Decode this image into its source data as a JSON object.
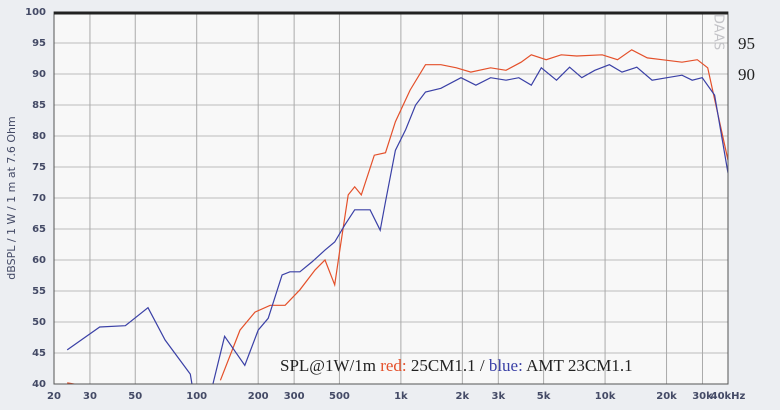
{
  "chart_data": {
    "type": "line",
    "y_label": "dBSPL / 1 W / 1 m at 7.6 Ohm",
    "legend_text": [
      "SPL@1W/1m ",
      "red:",
      " 25CM1.1 / ",
      "blue:",
      " AMT 23CM1.1"
    ],
    "annotations": [
      "95",
      "90"
    ],
    "watermark": "DAAS",
    "x_log": true,
    "grid": true,
    "xlim": [
      20,
      40000
    ],
    "ylim": [
      40,
      100
    ],
    "yticks": [
      40,
      45,
      50,
      55,
      60,
      65,
      70,
      75,
      80,
      85,
      90,
      95,
      100
    ],
    "xticks": [
      20,
      30,
      50,
      100,
      200,
      300,
      500,
      {
        "value": 1000,
        "label": "1k"
      },
      {
        "value": 2000,
        "label": "2k"
      },
      {
        "value": 3000,
        "label": "3k"
      },
      {
        "value": 5000,
        "label": "5k"
      },
      {
        "value": 10000,
        "label": "10k"
      },
      {
        "value": 20000,
        "label": "20k"
      },
      {
        "value": 30000,
        "label": "30k"
      },
      {
        "value": 40000,
        "label": "40kHz"
      }
    ],
    "series": [
      {
        "name": "25CM1.1",
        "color": "#e4502a",
        "x": [
          23.2,
          28.4,
          60,
          130.6,
          163,
          193,
          229,
          271,
          320,
          380,
          425,
          474,
          504,
          552,
          594,
          640,
          741,
          841,
          940,
          1110,
          1320,
          1570,
          1870,
          2200,
          2750,
          3270,
          3880,
          4350,
          5150,
          6100,
          7260,
          9680,
          11500,
          13500,
          16100,
          19000,
          23800,
          28300,
          31800,
          40000
        ],
        "values": [
          40.2,
          39.7,
          null,
          40.6,
          48.7,
          51.6,
          52.7,
          52.7,
          55.2,
          58.4,
          60,
          56,
          61.9,
          70.5,
          71.8,
          70.5,
          76.9,
          77.3,
          82.3,
          87.4,
          91.5,
          91.5,
          91,
          90.3,
          91,
          90.6,
          91.9,
          93.1,
          92.3,
          93.1,
          92.9,
          93.1,
          92.3,
          93.9,
          92.6,
          92.3,
          91.9,
          92.3,
          91,
          76.1
        ]
      },
      {
        "name": "AMT 23CM1.1",
        "color": "#3a40a6",
        "x": [
          23.2,
          33.5,
          44.7,
          57.7,
          70,
          93,
          97,
          116,
          137,
          172,
          200,
          224,
          262,
          286,
          320,
          367,
          425,
          474,
          530,
          594,
          707,
          792,
          841,
          940,
          1054,
          1180,
          1320,
          1570,
          1970,
          2330,
          2750,
          3270,
          3780,
          4350,
          4870,
          5780,
          6700,
          7690,
          8910,
          10500,
          12100,
          14300,
          17000,
          20100,
          23800,
          26700,
          29900,
          34400,
          40000
        ],
        "values": [
          45.5,
          49.2,
          49.4,
          52.3,
          47.1,
          41.6,
          38,
          38,
          47.7,
          43,
          48.7,
          50.6,
          57.6,
          58.1,
          58.1,
          59.7,
          61.6,
          62.9,
          65.6,
          68.1,
          68.1,
          64.8,
          69.4,
          77.7,
          81,
          85,
          87.1,
          87.7,
          89.4,
          88.2,
          89.4,
          89,
          89.4,
          88.2,
          91,
          89,
          91.1,
          89.4,
          90.6,
          91.5,
          90.3,
          91.1,
          89,
          89.4,
          89.8,
          89,
          89.4,
          86.6,
          74
        ]
      }
    ]
  }
}
